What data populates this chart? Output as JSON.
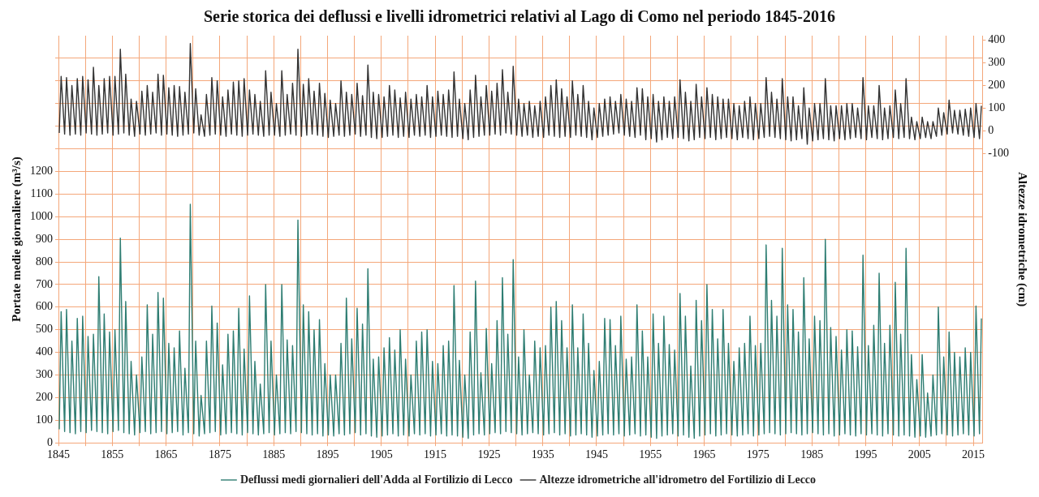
{
  "chart_data": {
    "type": "line",
    "title": "Serie storica dei deflussi e livelli idrometrici relativi al Lago di Como nel periodo 1845-2016",
    "ylabel": "Portate medie giornaliere (m³/s)",
    "y2label": "Altezze idrometriche (cm)",
    "grid": true,
    "legend": "bottom",
    "marker": "none",
    "line_style": "solid",
    "xlim": [
      1845,
      2016.7
    ],
    "xticks": [
      1845,
      {
        "value": 1850,
        "label": null
      },
      1855,
      {
        "value": 1860,
        "label": null
      },
      1865,
      {
        "value": 1870,
        "label": null
      },
      1875,
      {
        "value": 1880,
        "label": null
      },
      1885,
      {
        "value": 1890,
        "label": null
      },
      1895,
      {
        "value": 1900,
        "label": null
      },
      1905,
      {
        "value": 1910,
        "label": null
      },
      1915,
      {
        "value": 1920,
        "label": null
      },
      1925,
      {
        "value": 1930,
        "label": null
      },
      1935,
      {
        "value": 1940,
        "label": null
      },
      1945,
      {
        "value": 1950,
        "label": null
      },
      1955,
      {
        "value": 1960,
        "label": null
      },
      1965,
      {
        "value": 1970,
        "label": null
      },
      1975,
      {
        "value": 1980,
        "label": null
      },
      1985,
      {
        "value": 1990,
        "label": null
      },
      1995,
      {
        "value": 2000,
        "label": null
      },
      2005,
      {
        "value": 2010,
        "label": null
      },
      2015
    ],
    "ylim": [
      0,
      1800
    ],
    "yticks": [
      0,
      100,
      200,
      300,
      400,
      500,
      600,
      700,
      800,
      900,
      1000,
      1100,
      1200,
      {
        "value": 1300,
        "label": null
      },
      {
        "value": 1400,
        "label": null
      },
      {
        "value": 1500,
        "label": null
      },
      {
        "value": 1600,
        "label": null
      },
      {
        "value": 1700,
        "label": null
      }
    ],
    "y2lim": [
      -1380,
      420
    ],
    "y2ticks": [
      -100,
      0,
      100,
      200,
      300,
      400
    ],
    "x": [
      1845.15,
      1845.5,
      1846.15,
      1846.5,
      1847.15,
      1847.5,
      1848.15,
      1848.5,
      1849.15,
      1849.5,
      1850.15,
      1850.5,
      1851.15,
      1851.5,
      1852.15,
      1852.5,
      1853.15,
      1853.5,
      1854.15,
      1854.5,
      1855.15,
      1855.5,
      1856.15,
      1856.5,
      1857.15,
      1857.5,
      1858.15,
      1858.5,
      1859.15,
      1859.5,
      1860.15,
      1860.5,
      1861.15,
      1861.5,
      1862.15,
      1862.5,
      1863.15,
      1863.5,
      1864.15,
      1864.5,
      1865.15,
      1865.5,
      1866.15,
      1866.5,
      1867.15,
      1867.5,
      1868.15,
      1868.5,
      1869.15,
      1869.5,
      1870.15,
      1870.5,
      1871.15,
      1871.5,
      1872.15,
      1872.5,
      1873.15,
      1873.5,
      1874.15,
      1874.5,
      1875.15,
      1875.5,
      1876.15,
      1876.5,
      1877.15,
      1877.5,
      1878.15,
      1878.5,
      1879.15,
      1879.5,
      1880.15,
      1880.5,
      1881.15,
      1881.5,
      1882.15,
      1882.5,
      1883.15,
      1883.5,
      1884.15,
      1884.5,
      1885.15,
      1885.5,
      1886.15,
      1886.5,
      1887.15,
      1887.5,
      1888.15,
      1888.5,
      1889.15,
      1889.5,
      1890.15,
      1890.5,
      1891.15,
      1891.5,
      1892.15,
      1892.5,
      1893.15,
      1893.5,
      1894.15,
      1894.5,
      1895.15,
      1895.5,
      1896.15,
      1896.5,
      1897.15,
      1897.5,
      1898.15,
      1898.5,
      1899.15,
      1899.5,
      1900.15,
      1900.5,
      1901.15,
      1901.5,
      1902.15,
      1902.5,
      1903.15,
      1903.5,
      1904.15,
      1904.5,
      1905.15,
      1905.5,
      1906.15,
      1906.5,
      1907.15,
      1907.5,
      1908.15,
      1908.5,
      1909.15,
      1909.5,
      1910.15,
      1910.5,
      1911.15,
      1911.5,
      1912.15,
      1912.5,
      1913.15,
      1913.5,
      1914.15,
      1914.5,
      1915.15,
      1915.5,
      1916.15,
      1916.5,
      1917.15,
      1917.5,
      1918.15,
      1918.5,
      1919.15,
      1919.5,
      1920.15,
      1920.5,
      1921.15,
      1921.5,
      1922.15,
      1922.5,
      1923.15,
      1923.5,
      1924.15,
      1924.5,
      1925.15,
      1925.5,
      1926.15,
      1926.5,
      1927.15,
      1927.5,
      1928.15,
      1928.5,
      1929.15,
      1929.5,
      1930.15,
      1930.5,
      1931.15,
      1931.5,
      1932.15,
      1932.5,
      1933.15,
      1933.5,
      1934.15,
      1934.5,
      1935.15,
      1935.5,
      1936.15,
      1936.5,
      1937.15,
      1937.5,
      1938.15,
      1938.5,
      1939.15,
      1939.5,
      1940.15,
      1940.5,
      1941.15,
      1941.5,
      1942.15,
      1942.5,
      1943.15,
      1943.5,
      1944.15,
      1944.5,
      1945.15,
      1945.5,
      1946.15,
      1946.5,
      1947.15,
      1947.5,
      1948.15,
      1948.5,
      1949.15,
      1949.5,
      1950.15,
      1950.5,
      1951.15,
      1951.5,
      1952.15,
      1952.5,
      1953.15,
      1953.5,
      1954.15,
      1954.5,
      1955.15,
      1955.5,
      1956.15,
      1956.5,
      1957.15,
      1957.5,
      1958.15,
      1958.5,
      1959.15,
      1959.5,
      1960.15,
      1960.5,
      1961.15,
      1961.5,
      1962.15,
      1962.5,
      1963.15,
      1963.5,
      1964.15,
      1964.5,
      1965.15,
      1965.5,
      1966.15,
      1966.5,
      1967.15,
      1967.5,
      1968.15,
      1968.5,
      1969.15,
      1969.5,
      1970.15,
      1970.5,
      1971.15,
      1971.5,
      1972.15,
      1972.5,
      1973.15,
      1973.5,
      1974.15,
      1974.5,
      1975.15,
      1975.5,
      1976.15,
      1976.5,
      1977.15,
      1977.5,
      1978.15,
      1978.5,
      1979.15,
      1979.5,
      1980.15,
      1980.5,
      1981.15,
      1981.5,
      1982.15,
      1982.5,
      1983.15,
      1983.5,
      1984.15,
      1984.5,
      1985.15,
      1985.5,
      1986.15,
      1986.5,
      1987.15,
      1987.5,
      1988.15,
      1988.5,
      1989.15,
      1989.5,
      1990.15,
      1990.5,
      1991.15,
      1991.5,
      1992.15,
      1992.5,
      1993.15,
      1993.5,
      1994.15,
      1994.5,
      1995.15,
      1995.5,
      1996.15,
      1996.5,
      1997.15,
      1997.5,
      1998.15,
      1998.5,
      1999.15,
      1999.5,
      2000.15,
      2000.5,
      2001.15,
      2001.5,
      2002.15,
      2002.5,
      2003.15,
      2003.5,
      2004.15,
      2004.5,
      2005.15,
      2005.5,
      2006.15,
      2006.5,
      2007.15,
      2007.5,
      2008.15,
      2008.5,
      2009.15,
      2009.5,
      2010.15,
      2010.5,
      2011.15,
      2011.5,
      2012.15,
      2012.5,
      2013.15,
      2013.5,
      2014.15,
      2014.5,
      2015.15,
      2015.5,
      2016.15,
      2016.5
    ],
    "series": [
      {
        "name": "Deflussi medi giornalieri dell'Adda al Fortilizio di Lecco",
        "color": "#2e7d72",
        "values": [
          60,
          580,
          50,
          590,
          45,
          450,
          40,
          550,
          50,
          560,
          45,
          470,
          55,
          480,
          50,
          735,
          45,
          570,
          40,
          490,
          50,
          500,
          55,
          905,
          45,
          625,
          40,
          360,
          35,
          300,
          45,
          380,
          50,
          610,
          40,
          480,
          45,
          665,
          50,
          640,
          40,
          440,
          45,
          420,
          50,
          495,
          35,
          330,
          45,
          1055,
          40,
          450,
          30,
          210,
          40,
          450,
          45,
          605,
          50,
          530,
          35,
          345,
          40,
          480,
          45,
          495,
          40,
          595,
          35,
          415,
          45,
          650,
          40,
          360,
          35,
          260,
          40,
          700,
          45,
          450,
          35,
          300,
          40,
          700,
          45,
          455,
          40,
          430,
          50,
          985,
          45,
          610,
          40,
          580,
          35,
          500,
          40,
          545,
          30,
          350,
          35,
          300,
          30,
          300,
          40,
          440,
          35,
          640,
          40,
          460,
          45,
          595,
          35,
          525,
          40,
          770,
          30,
          370,
          25,
          380,
          30,
          420,
          35,
          465,
          40,
          410,
          30,
          500,
          35,
          370,
          30,
          300,
          40,
          450,
          35,
          490,
          40,
          500,
          30,
          360,
          35,
          350,
          40,
          430,
          30,
          450,
          35,
          695,
          30,
          365,
          25,
          300,
          20,
          490,
          35,
          715,
          40,
          310,
          35,
          505,
          40,
          350,
          45,
          540,
          40,
          730,
          50,
          480,
          45,
          810,
          40,
          380,
          35,
          500,
          40,
          300,
          45,
          450,
          40,
          420,
          35,
          430,
          40,
          600,
          45,
          625,
          35,
          540,
          40,
          420,
          30,
          610,
          35,
          420,
          40,
          570,
          35,
          440,
          25,
          320,
          30,
          360,
          35,
          550,
          40,
          545,
          35,
          430,
          40,
          560,
          30,
          370,
          35,
          380,
          40,
          610,
          30,
          495,
          35,
          380,
          25,
          570,
          20,
          440,
          30,
          560,
          35,
          435,
          40,
          410,
          30,
          660,
          35,
          560,
          25,
          340,
          20,
          630,
          30,
          540,
          35,
          700,
          40,
          590,
          30,
          460,
          35,
          590,
          40,
          440,
          35,
          360,
          30,
          420,
          35,
          440,
          40,
          560,
          30,
          430,
          35,
          440,
          40,
          875,
          45,
          630,
          40,
          560,
          35,
          860,
          40,
          610,
          45,
          590,
          40,
          490,
          35,
          730,
          40,
          460,
          45,
          560,
          40,
          540,
          35,
          900,
          40,
          510,
          30,
          470,
          35,
          410,
          40,
          500,
          35,
          495,
          30,
          425,
          40,
          830,
          35,
          430,
          40,
          520,
          35,
          750,
          30,
          440,
          40,
          520,
          35,
          710,
          30,
          480,
          35,
          860,
          30,
          390,
          25,
          280,
          30,
          390,
          25,
          220,
          30,
          300,
          35,
          600,
          40,
          380,
          35,
          490,
          30,
          400,
          35,
          380,
          40,
          420,
          35,
          400,
          30,
          605,
          40,
          550
        ]
      },
      {
        "name": "Altezze idrometriche all'idrometro del Fortilizio di Lecco",
        "color": "#333333",
        "axis": "y2",
        "values": [
          -10,
          240,
          -15,
          235,
          -20,
          200,
          -15,
          230,
          -20,
          240,
          -10,
          225,
          -15,
          280,
          -20,
          200,
          -15,
          230,
          -10,
          240,
          -20,
          240,
          -15,
          360,
          -10,
          250,
          -20,
          140,
          -25,
          130,
          -15,
          175,
          -20,
          200,
          -15,
          170,
          -10,
          250,
          -20,
          245,
          -15,
          190,
          -20,
          200,
          -25,
          195,
          -20,
          170,
          -15,
          385,
          -10,
          185,
          -20,
          70,
          -25,
          160,
          -20,
          235,
          -15,
          220,
          -20,
          150,
          -25,
          180,
          -15,
          215,
          -20,
          220,
          -25,
          230,
          -20,
          180,
          -15,
          160,
          -20,
          130,
          -25,
          265,
          -20,
          170,
          -20,
          120,
          -25,
          265,
          -20,
          160,
          -15,
          210,
          -20,
          360,
          -25,
          205,
          -20,
          230,
          -15,
          175,
          -20,
          210,
          -25,
          165,
          -30,
          135,
          -25,
          120,
          -20,
          220,
          -25,
          170,
          -20,
          160,
          -15,
          210,
          -25,
          155,
          -20,
          290,
          -30,
          170,
          -35,
          160,
          -30,
          150,
          -25,
          200,
          -20,
          180,
          -30,
          145,
          -25,
          170,
          -30,
          140,
          -20,
          160,
          -25,
          150,
          -20,
          200,
          -30,
          150,
          -25,
          175,
          -20,
          160,
          -25,
          180,
          -30,
          260,
          -25,
          140,
          -35,
          120,
          -40,
          180,
          -30,
          245,
          -25,
          150,
          -20,
          200,
          -20,
          175,
          -15,
          210,
          -20,
          270,
          -10,
          170,
          -15,
          285,
          -20,
          140,
          -25,
          120,
          -20,
          130,
          -30,
          110,
          -25,
          130,
          -30,
          150,
          -20,
          200,
          -25,
          225,
          -30,
          185,
          -25,
          150,
          -30,
          220,
          -20,
          160,
          -25,
          200,
          -30,
          130,
          -40,
          100,
          -30,
          120,
          -25,
          140,
          -20,
          150,
          -15,
          130,
          -10,
          160,
          -20,
          140,
          -25,
          130,
          -30,
          190,
          -20,
          185,
          -40,
          150,
          -35,
          160,
          -50,
          130,
          -40,
          150,
          -30,
          130,
          -35,
          150,
          -30,
          225,
          -35,
          170,
          -45,
          130,
          -40,
          205,
          -30,
          150,
          -35,
          190,
          -30,
          160,
          -40,
          150,
          -35,
          140,
          -30,
          140,
          -35,
          120,
          -40,
          110,
          -30,
          130,
          -35,
          150,
          -40,
          120,
          -35,
          120,
          -30,
          235,
          -25,
          170,
          -30,
          140,
          -35,
          230,
          -40,
          150,
          -45,
          150,
          -40,
          110,
          -35,
          190,
          -60,
          100,
          -45,
          120,
          -40,
          120,
          -35,
          230,
          -40,
          110,
          -45,
          110,
          -35,
          110,
          -40,
          120,
          -35,
          120,
          -30,
          100,
          -35,
          235,
          -40,
          110,
          -30,
          110,
          -35,
          200,
          -40,
          100,
          -35,
          110,
          -30,
          180,
          -35,
          120,
          -30,
          230,
          -35,
          60,
          -40,
          40,
          -35,
          60,
          -30,
          40,
          -35,
          40,
          -25,
          100,
          -20,
          80,
          -15,
          135,
          -10,
          90,
          -15,
          90,
          -20,
          95,
          -25,
          100,
          -30,
          120,
          -35,
          110
        ]
      }
    ]
  }
}
